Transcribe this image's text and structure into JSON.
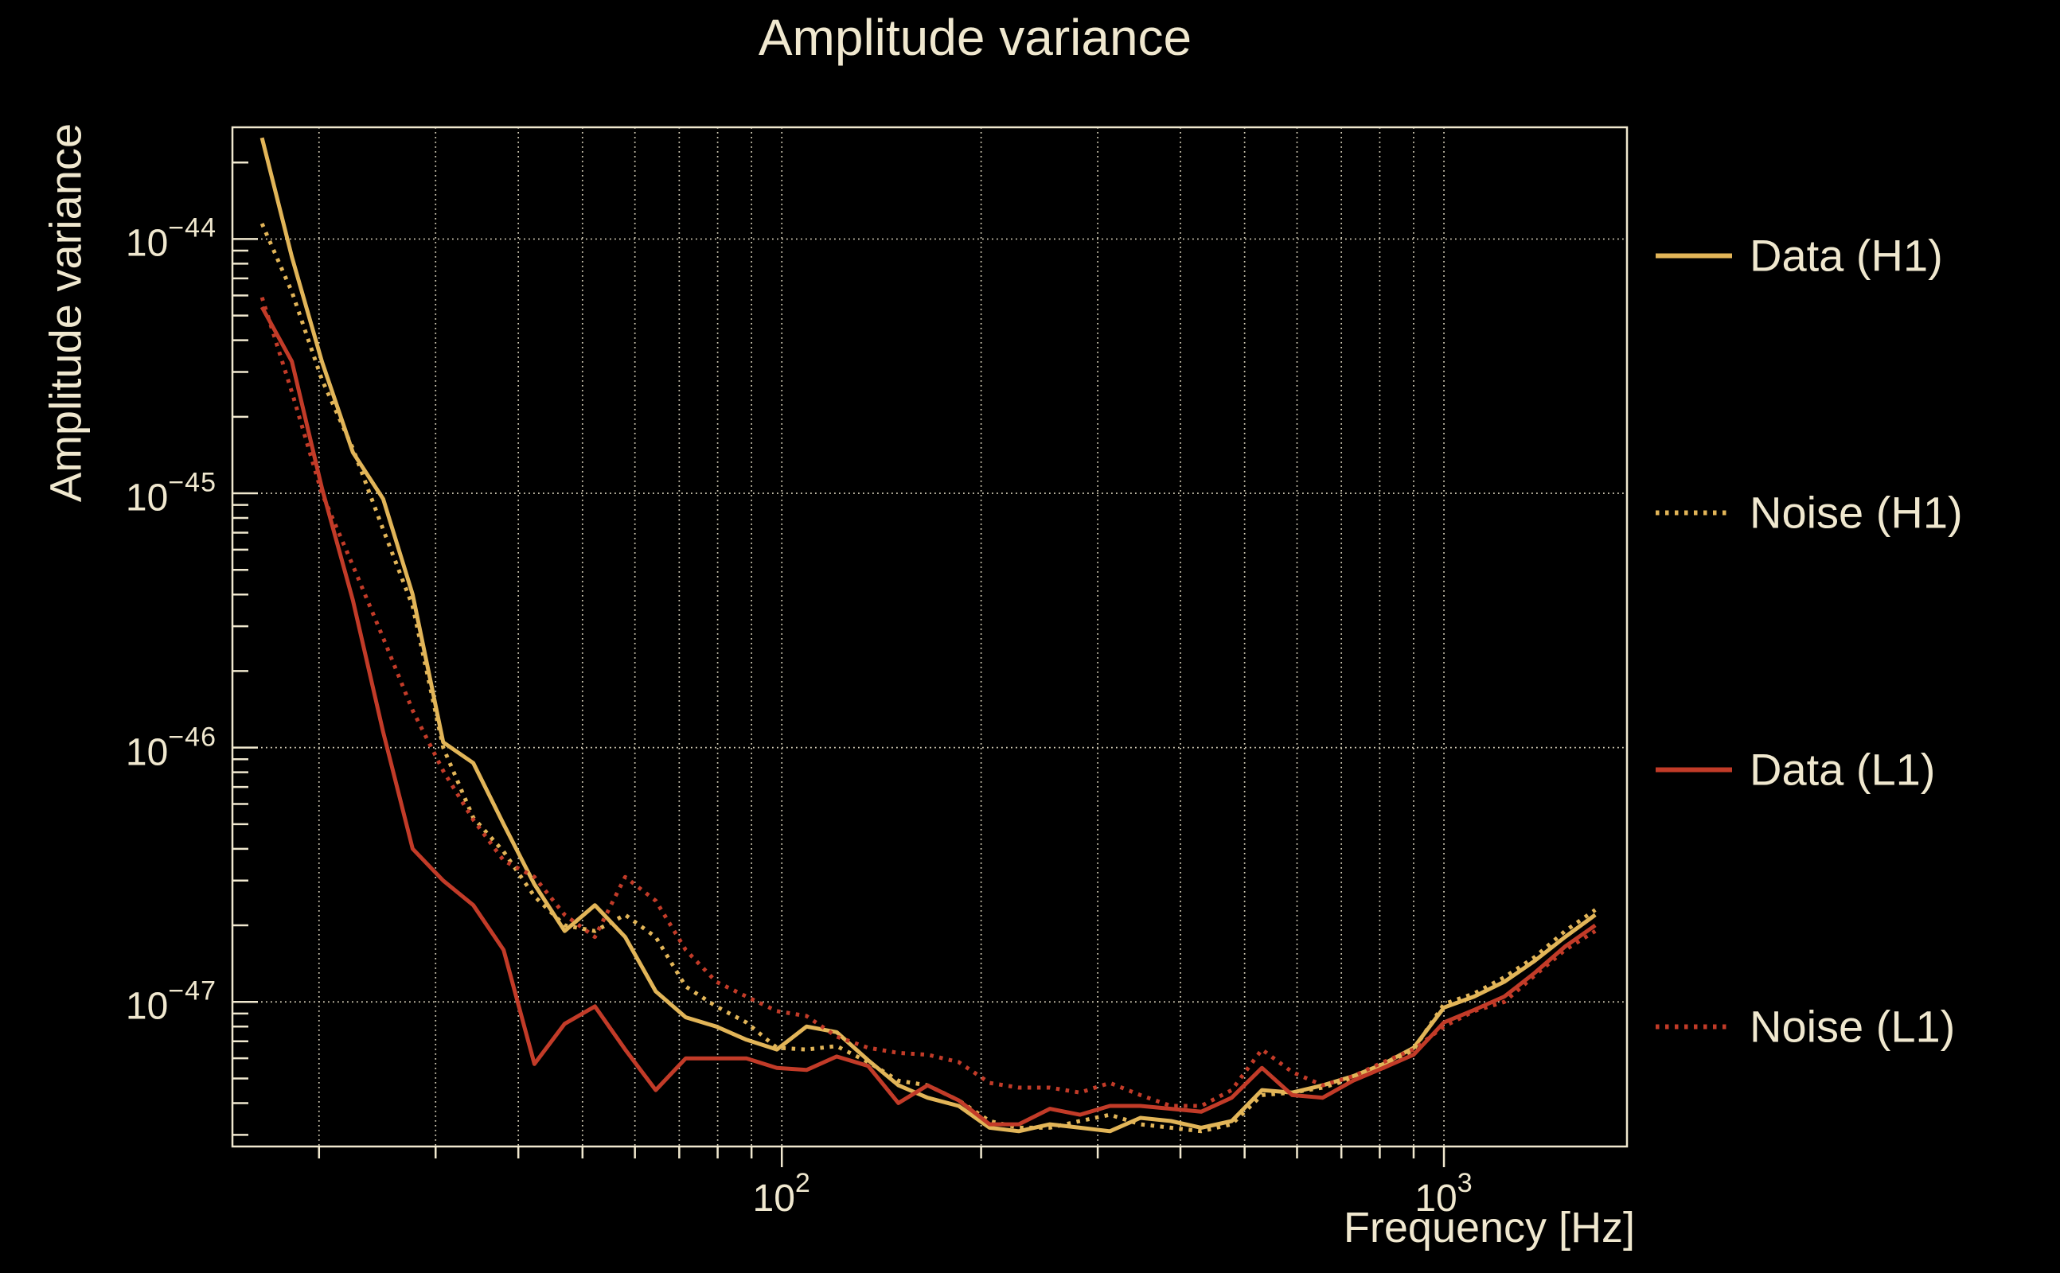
{
  "title": "Amplitude variance",
  "colors": {
    "background": "#000000",
    "foreground": "#F0E8CF",
    "gold": "#E2B558",
    "red": "#C23B28"
  },
  "chart_data": {
    "type": "line",
    "title": "Amplitude variance",
    "xlabel": "Frequency [Hz]",
    "ylabel": "Amplitude variance",
    "xscale": "log",
    "yscale": "log",
    "xlim": [
      14.8,
      1890
    ],
    "ylim": [
      2.7e-48,
      2.75e-44
    ],
    "grid": {
      "vertical": "log decades and minors, dotted",
      "horizontal": "log decades only, dotted"
    },
    "x_tick_exponents": [
      2,
      3
    ],
    "y_tick_exponents": [
      -44,
      -45,
      -46,
      -47
    ],
    "legend_position": "right-outside-vertical",
    "x": [
      16.4,
      18.2,
      20.2,
      22.5,
      25,
      27.7,
      30.8,
      34.2,
      38,
      42.3,
      47,
      52.2,
      58,
      64.5,
      71.6,
      79.6,
      88.4,
      98.3,
      109,
      121,
      135,
      150,
      166,
      185,
      206,
      228,
      254,
      282,
      313,
      348,
      387,
      430,
      478,
      531,
      590,
      656,
      729,
      810,
      900,
      1000,
      1111,
      1234,
      1371,
      1524,
      1693
    ],
    "series": [
      {
        "name": "Data (H1)",
        "color": "#E2B558",
        "style": "solid",
        "values": [
          2.5e-44,
          8.5e-45,
          3.3e-45,
          1.45e-45,
          9.5e-46,
          4e-46,
          1.05e-46,
          8.7e-47,
          5e-47,
          2.9e-47,
          1.9e-47,
          2.4e-47,
          1.8e-47,
          1.1e-47,
          8.7e-48,
          8e-48,
          7.1e-48,
          6.5e-48,
          8e-48,
          7.6e-48,
          5.9e-48,
          4.7e-48,
          4.2e-48,
          3.9e-48,
          3.2e-48,
          3.1e-48,
          3.3e-48,
          3.2e-48,
          3.1e-48,
          3.5e-48,
          3.4e-48,
          3.2e-48,
          3.4e-48,
          4.5e-48,
          4.4e-48,
          4.7e-48,
          5.1e-48,
          5.7e-48,
          6.6e-48,
          9.5e-48,
          1.05e-47,
          1.2e-47,
          1.45e-47,
          1.8e-47,
          2.2e-47
        ]
      },
      {
        "name": "Noise (H1)",
        "color": "#E2B558",
        "style": "dotted",
        "values": [
          1.15e-44,
          6.2e-45,
          2.8e-45,
          1.5e-45,
          7.2e-46,
          3.6e-46,
          1e-46,
          5.3e-47,
          3.9e-47,
          2.6e-47,
          2e-47,
          1.9e-47,
          2.2e-47,
          1.8e-47,
          1.15e-47,
          9.6e-48,
          8.3e-48,
          6.6e-48,
          6.5e-48,
          6.7e-48,
          5.8e-48,
          4.9e-48,
          4.7e-48,
          4.1e-48,
          3.4e-48,
          3.2e-48,
          3.2e-48,
          3.4e-48,
          3.6e-48,
          3.3e-48,
          3.2e-48,
          3.1e-48,
          3.3e-48,
          4.3e-48,
          4.4e-48,
          4.6e-48,
          5e-48,
          5.5e-48,
          6.5e-48,
          9.8e-48,
          1.08e-47,
          1.25e-47,
          1.5e-47,
          1.9e-47,
          2.3e-47
        ]
      },
      {
        "name": "Data (L1)",
        "color": "#C23B28",
        "style": "solid",
        "values": [
          5.4e-45,
          3.3e-45,
          1.05e-45,
          3.8e-46,
          1.15e-46,
          4e-47,
          3e-47,
          2.4e-47,
          1.6e-47,
          5.7e-48,
          8.2e-48,
          9.6e-48,
          6.5e-48,
          4.5e-48,
          6e-48,
          6e-48,
          6e-48,
          5.5e-48,
          5.4e-48,
          6.1e-48,
          5.6e-48,
          4e-48,
          4.7e-48,
          4.1e-48,
          3.3e-48,
          3.3e-48,
          3.8e-48,
          3.6e-48,
          3.9e-48,
          3.9e-48,
          3.8e-48,
          3.7e-48,
          4.2e-48,
          5.5e-48,
          4.3e-48,
          4.2e-48,
          4.9e-48,
          5.5e-48,
          6.2e-48,
          8.3e-48,
          9.3e-48,
          1.05e-47,
          1.3e-47,
          1.65e-47,
          2e-47
        ]
      },
      {
        "name": "Noise (L1)",
        "color": "#C23B28",
        "style": "dotted",
        "values": [
          5.9e-45,
          2.5e-45,
          1e-45,
          5.2e-46,
          2.7e-46,
          1.4e-46,
          8.1e-47,
          5.2e-47,
          3.6e-47,
          3.1e-47,
          2.2e-47,
          1.8e-47,
          3.1e-47,
          2.5e-47,
          1.6e-47,
          1.2e-47,
          1.05e-47,
          9.2e-48,
          8.8e-48,
          7.3e-48,
          6.6e-48,
          6.3e-48,
          6.2e-48,
          5.8e-48,
          4.8e-48,
          4.6e-48,
          4.6e-48,
          4.4e-48,
          4.8e-48,
          4.3e-48,
          3.9e-48,
          3.9e-48,
          4.5e-48,
          6.5e-48,
          5.3e-48,
          4.7e-48,
          5.1e-48,
          5.8e-48,
          6.5e-48,
          8e-48,
          9.2e-48,
          1e-47,
          1.27e-47,
          1.6e-47,
          1.9e-47
        ]
      }
    ]
  }
}
